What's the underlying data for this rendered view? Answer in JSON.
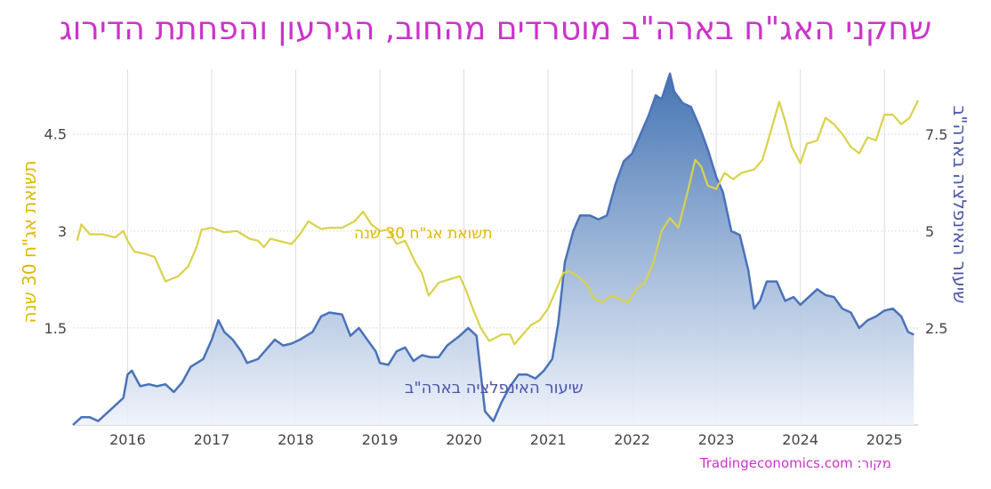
{
  "title": "שחקני האג\"ח בארה\"ב מוטרדים מהחוב, הגירעון והפחתת הדירוג",
  "source": "מקור: Tradingeconomics.com",
  "colors": {
    "yield": "#d9d24a",
    "inflation_line": "#4a72b8",
    "fill_top": "#3b6db0",
    "fill_bottom": "#eef2fa",
    "grid": "#dddddd"
  },
  "chart_data": {
    "type": "line",
    "x_ticks": [
      "2016",
      "2017",
      "2018",
      "2019",
      "2020",
      "2021",
      "2022",
      "2023",
      "2024",
      "2025"
    ],
    "x_range": [
      2015.35,
      2025.4
    ],
    "left_axis": {
      "label": "תשואת אג\"ח 30 שנה",
      "ticks": [
        "1.5",
        "3",
        "4.5"
      ],
      "tick_values": [
        1.5,
        3,
        4.5
      ],
      "range": [
        0,
        5.5
      ]
    },
    "right_axis": {
      "label": "שיעור האינפלציה בארה\"ב",
      "ticks": [
        "2.5",
        "5",
        "7.5"
      ],
      "tick_values": [
        2.5,
        5,
        7.5
      ],
      "range": [
        0,
        9.17
      ]
    },
    "series": [
      {
        "name": "תשואת אג\"ח 30 שנה",
        "axis": "left",
        "type": "line",
        "points": [
          [
            2015.4,
            2.85
          ],
          [
            2015.45,
            3.1
          ],
          [
            2015.55,
            2.95
          ],
          [
            2015.7,
            2.95
          ],
          [
            2015.85,
            2.9
          ],
          [
            2015.95,
            3.0
          ],
          [
            2016.0,
            2.85
          ],
          [
            2016.08,
            2.68
          ],
          [
            2016.2,
            2.65
          ],
          [
            2016.32,
            2.6
          ],
          [
            2016.45,
            2.22
          ],
          [
            2016.6,
            2.3
          ],
          [
            2016.72,
            2.45
          ],
          [
            2016.82,
            2.75
          ],
          [
            2016.88,
            3.02
          ],
          [
            2017.0,
            3.05
          ],
          [
            2017.15,
            2.98
          ],
          [
            2017.3,
            3.0
          ],
          [
            2017.45,
            2.88
          ],
          [
            2017.55,
            2.85
          ],
          [
            2017.62,
            2.75
          ],
          [
            2017.7,
            2.88
          ],
          [
            2017.85,
            2.83
          ],
          [
            2017.95,
            2.8
          ],
          [
            2018.05,
            2.95
          ],
          [
            2018.15,
            3.15
          ],
          [
            2018.3,
            3.03
          ],
          [
            2018.4,
            3.05
          ],
          [
            2018.55,
            3.05
          ],
          [
            2018.7,
            3.15
          ],
          [
            2018.8,
            3.3
          ],
          [
            2018.9,
            3.1
          ],
          [
            2019.0,
            3.0
          ],
          [
            2019.1,
            3.02
          ],
          [
            2019.2,
            2.8
          ],
          [
            2019.3,
            2.85
          ],
          [
            2019.42,
            2.52
          ],
          [
            2019.5,
            2.35
          ],
          [
            2019.58,
            2.0
          ],
          [
            2019.7,
            2.2
          ],
          [
            2019.82,
            2.25
          ],
          [
            2019.95,
            2.3
          ],
          [
            2020.02,
            2.1
          ],
          [
            2020.12,
            1.75
          ],
          [
            2020.2,
            1.5
          ],
          [
            2020.3,
            1.3
          ],
          [
            2020.45,
            1.4
          ],
          [
            2020.55,
            1.4
          ],
          [
            2020.6,
            1.25
          ],
          [
            2020.7,
            1.4
          ],
          [
            2020.8,
            1.55
          ],
          [
            2020.9,
            1.62
          ],
          [
            2021.0,
            1.8
          ],
          [
            2021.1,
            2.1
          ],
          [
            2021.18,
            2.35
          ],
          [
            2021.25,
            2.38
          ],
          [
            2021.35,
            2.3
          ],
          [
            2021.45,
            2.2
          ],
          [
            2021.55,
            1.95
          ],
          [
            2021.65,
            1.9
          ],
          [
            2021.75,
            2.0
          ],
          [
            2021.85,
            1.95
          ],
          [
            2021.95,
            1.9
          ],
          [
            2022.05,
            2.1
          ],
          [
            2022.15,
            2.2
          ],
          [
            2022.25,
            2.5
          ],
          [
            2022.35,
            3.0
          ],
          [
            2022.45,
            3.2
          ],
          [
            2022.55,
            3.05
          ],
          [
            2022.65,
            3.55
          ],
          [
            2022.75,
            4.1
          ],
          [
            2022.82,
            4.0
          ],
          [
            2022.9,
            3.7
          ],
          [
            2023.0,
            3.65
          ],
          [
            2023.1,
            3.9
          ],
          [
            2023.2,
            3.8
          ],
          [
            2023.3,
            3.9
          ],
          [
            2023.45,
            3.95
          ],
          [
            2023.55,
            4.1
          ],
          [
            2023.65,
            4.55
          ],
          [
            2023.75,
            5.0
          ],
          [
            2023.82,
            4.7
          ],
          [
            2023.9,
            4.3
          ],
          [
            2024.0,
            4.05
          ],
          [
            2024.08,
            4.35
          ],
          [
            2024.2,
            4.4
          ],
          [
            2024.3,
            4.75
          ],
          [
            2024.4,
            4.65
          ],
          [
            2024.5,
            4.5
          ],
          [
            2024.6,
            4.3
          ],
          [
            2024.7,
            4.2
          ],
          [
            2024.8,
            4.45
          ],
          [
            2024.9,
            4.4
          ],
          [
            2025.0,
            4.8
          ],
          [
            2025.1,
            4.8
          ],
          [
            2025.2,
            4.65
          ],
          [
            2025.3,
            4.75
          ],
          [
            2025.4,
            5.02
          ]
        ]
      },
      {
        "name": "שיעור האינפלציה בארה\"ב",
        "axis": "right",
        "type": "area",
        "points": [
          [
            2015.35,
            0.0
          ],
          [
            2015.45,
            0.2
          ],
          [
            2015.55,
            0.2
          ],
          [
            2015.65,
            0.1
          ],
          [
            2015.75,
            0.3
          ],
          [
            2015.85,
            0.5
          ],
          [
            2015.95,
            0.7
          ],
          [
            2016.0,
            1.3
          ],
          [
            2016.05,
            1.4
          ],
          [
            2016.15,
            1.0
          ],
          [
            2016.25,
            1.05
          ],
          [
            2016.35,
            1.0
          ],
          [
            2016.45,
            1.05
          ],
          [
            2016.55,
            0.85
          ],
          [
            2016.65,
            1.1
          ],
          [
            2016.75,
            1.5
          ],
          [
            2016.9,
            1.7
          ],
          [
            2017.0,
            2.2
          ],
          [
            2017.08,
            2.7
          ],
          [
            2017.15,
            2.4
          ],
          [
            2017.25,
            2.2
          ],
          [
            2017.35,
            1.9
          ],
          [
            2017.42,
            1.6
          ],
          [
            2017.55,
            1.7
          ],
          [
            2017.65,
            1.95
          ],
          [
            2017.75,
            2.2
          ],
          [
            2017.85,
            2.05
          ],
          [
            2017.95,
            2.1
          ],
          [
            2018.05,
            2.2
          ],
          [
            2018.2,
            2.4
          ],
          [
            2018.3,
            2.8
          ],
          [
            2018.4,
            2.9
          ],
          [
            2018.55,
            2.85
          ],
          [
            2018.65,
            2.3
          ],
          [
            2018.75,
            2.5
          ],
          [
            2018.85,
            2.2
          ],
          [
            2018.95,
            1.9
          ],
          [
            2019.0,
            1.6
          ],
          [
            2019.1,
            1.55
          ],
          [
            2019.2,
            1.9
          ],
          [
            2019.3,
            2.0
          ],
          [
            2019.4,
            1.65
          ],
          [
            2019.5,
            1.8
          ],
          [
            2019.6,
            1.75
          ],
          [
            2019.7,
            1.75
          ],
          [
            2019.8,
            2.05
          ],
          [
            2019.95,
            2.3
          ],
          [
            2020.05,
            2.5
          ],
          [
            2020.15,
            2.3
          ],
          [
            2020.25,
            0.35
          ],
          [
            2020.35,
            0.1
          ],
          [
            2020.45,
            0.6
          ],
          [
            2020.55,
            1.0
          ],
          [
            2020.65,
            1.3
          ],
          [
            2020.75,
            1.3
          ],
          [
            2020.85,
            1.2
          ],
          [
            2020.95,
            1.4
          ],
          [
            2021.05,
            1.7
          ],
          [
            2021.12,
            2.6
          ],
          [
            2021.2,
            4.2
          ],
          [
            2021.3,
            5.0
          ],
          [
            2021.38,
            5.4
          ],
          [
            2021.5,
            5.4
          ],
          [
            2021.6,
            5.3
          ],
          [
            2021.7,
            5.4
          ],
          [
            2021.8,
            6.2
          ],
          [
            2021.9,
            6.8
          ],
          [
            2022.0,
            7.0
          ],
          [
            2022.1,
            7.5
          ],
          [
            2022.2,
            8.0
          ],
          [
            2022.28,
            8.5
          ],
          [
            2022.35,
            8.4
          ],
          [
            2022.45,
            9.06
          ],
          [
            2022.5,
            8.6
          ],
          [
            2022.6,
            8.3
          ],
          [
            2022.7,
            8.2
          ],
          [
            2022.8,
            7.7
          ],
          [
            2022.9,
            7.1
          ],
          [
            2023.0,
            6.4
          ],
          [
            2023.08,
            6.0
          ],
          [
            2023.18,
            5.0
          ],
          [
            2023.28,
            4.9
          ],
          [
            2023.38,
            4.0
          ],
          [
            2023.45,
            3.0
          ],
          [
            2023.52,
            3.2
          ],
          [
            2023.6,
            3.7
          ],
          [
            2023.72,
            3.7
          ],
          [
            2023.82,
            3.2
          ],
          [
            2023.92,
            3.3
          ],
          [
            2024.0,
            3.1
          ],
          [
            2024.1,
            3.3
          ],
          [
            2024.2,
            3.5
          ],
          [
            2024.3,
            3.35
          ],
          [
            2024.4,
            3.3
          ],
          [
            2024.5,
            3.0
          ],
          [
            2024.6,
            2.9
          ],
          [
            2024.7,
            2.5
          ],
          [
            2024.8,
            2.7
          ],
          [
            2024.9,
            2.8
          ],
          [
            2025.0,
            2.95
          ],
          [
            2025.1,
            3.0
          ],
          [
            2025.2,
            2.8
          ],
          [
            2025.28,
            2.4
          ],
          [
            2025.35,
            2.33
          ]
        ]
      }
    ]
  }
}
